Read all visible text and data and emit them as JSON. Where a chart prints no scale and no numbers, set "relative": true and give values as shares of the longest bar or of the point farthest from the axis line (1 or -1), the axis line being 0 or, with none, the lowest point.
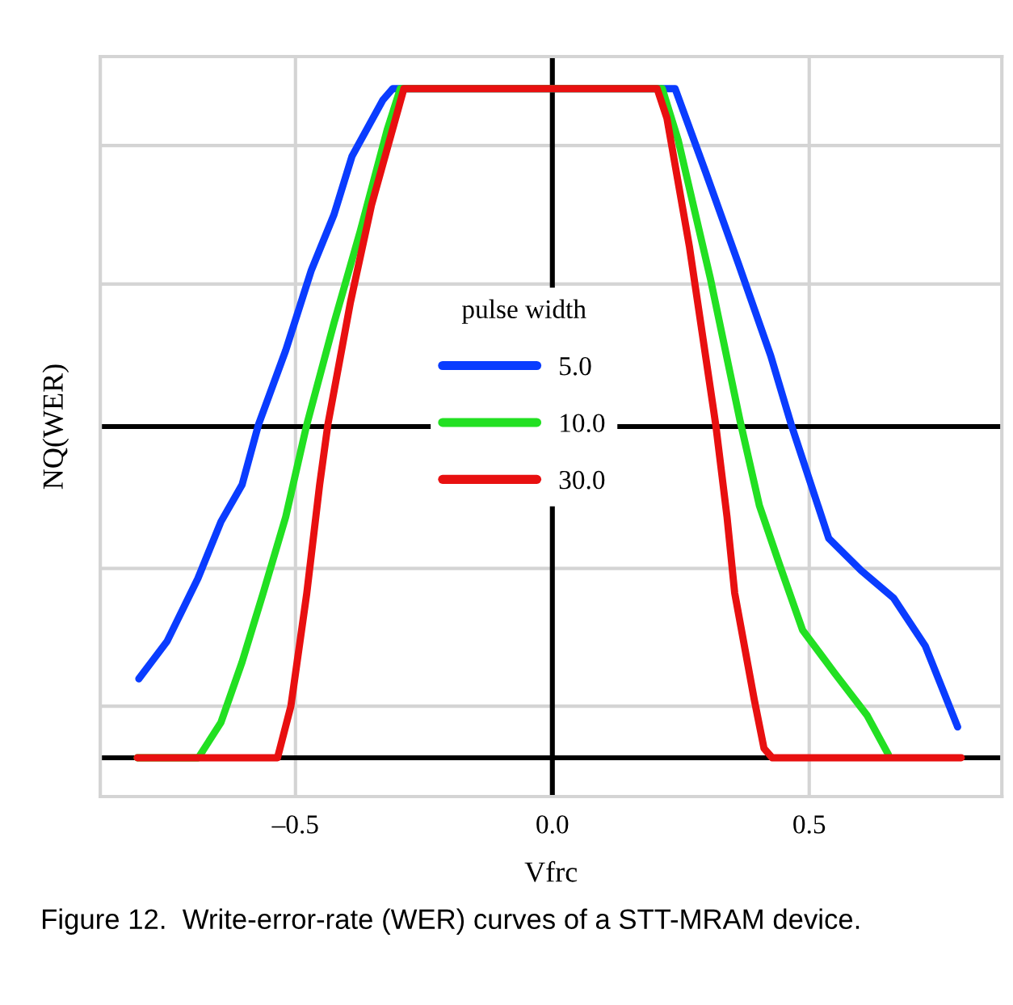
{
  "chart_data": {
    "type": "line",
    "relative": true,
    "xlabel": "Vfrc",
    "ylabel": "NQ(WER)",
    "legend_title": "pulse width",
    "legend": "center",
    "xlim": [
      -0.88,
      0.875
    ],
    "xticks": [
      {
        "value": -0.5,
        "label": "–0.5"
      },
      {
        "value": 0.0,
        "label": "0.0"
      },
      {
        "value": 0.5,
        "label": "0.5"
      }
    ],
    "grid": "x",
    "line_style": "solid",
    "marker": "none",
    "series": [
      {
        "name": "5.0",
        "color": "#0a3cff",
        "x": [
          -0.805,
          -0.75,
          -0.69,
          -0.645,
          -0.604,
          -0.572,
          -0.519,
          -0.469,
          -0.425,
          -0.39,
          -0.33,
          -0.311,
          0.239,
          0.299,
          0.362,
          0.425,
          0.465,
          0.538,
          0.601,
          0.664,
          0.726,
          0.789
        ],
        "values": [
          0.118,
          0.174,
          0.268,
          0.353,
          0.408,
          0.498,
          0.609,
          0.729,
          0.812,
          0.899,
          0.983,
          1.0,
          1.0,
          0.874,
          0.739,
          0.601,
          0.498,
          0.328,
          0.28,
          0.239,
          0.167,
          0.046
        ]
      },
      {
        "name": "10.0",
        "color": "#22e022",
        "x": [
          -0.808,
          -0.689,
          -0.645,
          -0.604,
          -0.563,
          -0.519,
          -0.478,
          -0.425,
          -0.374,
          -0.321,
          -0.296,
          0.214,
          0.245,
          0.308,
          0.365,
          0.403,
          0.443,
          0.487,
          0.55,
          0.613,
          0.654
        ],
        "values": [
          0.0,
          0.0,
          0.053,
          0.143,
          0.246,
          0.36,
          0.498,
          0.65,
          0.787,
          0.94,
          1.0,
          1.0,
          0.923,
          0.715,
          0.505,
          0.377,
          0.287,
          0.191,
          0.126,
          0.063,
          0.005
        ]
      },
      {
        "name": "30.0",
        "color": "#e81010",
        "x": [
          -0.808,
          -0.535,
          -0.509,
          -0.478,
          -0.453,
          -0.437,
          -0.393,
          -0.352,
          -0.289,
          0.204,
          0.223,
          0.267,
          0.318,
          0.34,
          0.355,
          0.393,
          0.412,
          0.428,
          0.796
        ],
        "values": [
          0.0,
          0.0,
          0.077,
          0.246,
          0.408,
          0.498,
          0.681,
          0.826,
          1.0,
          1.0,
          0.956,
          0.763,
          0.498,
          0.36,
          0.246,
          0.087,
          0.014,
          0.0,
          0.0
        ]
      }
    ],
    "ref_lines": [
      {
        "axis": "y",
        "value": 0.495,
        "color": "#000000"
      },
      {
        "axis": "x",
        "value": 0.0,
        "color": "#000000"
      },
      {
        "axis": "y",
        "value": 0.077,
        "color": "#d4d4d4"
      },
      {
        "axis": "y",
        "value": 0.283,
        "color": "#d4d4d4"
      },
      {
        "axis": "y",
        "value": 0.708,
        "color": "#d4d4d4"
      },
      {
        "axis": "y",
        "value": 0.915,
        "color": "#d4d4d4"
      }
    ],
    "annotations": [
      "Figure 12.  Write-error-rate (WER) curves of a STT-MRAM device."
    ]
  }
}
